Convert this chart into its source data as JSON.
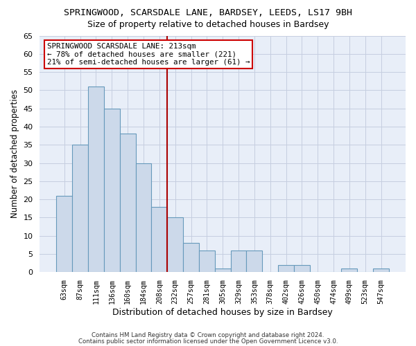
{
  "title1": "SPRINGWOOD, SCARSDALE LANE, BARDSEY, LEEDS, LS17 9BH",
  "title2": "Size of property relative to detached houses in Bardsey",
  "xlabel": "Distribution of detached houses by size in Bardsey",
  "ylabel": "Number of detached properties",
  "bar_labels": [
    "63sqm",
    "87sqm",
    "111sqm",
    "136sqm",
    "160sqm",
    "184sqm",
    "208sqm",
    "232sqm",
    "257sqm",
    "281sqm",
    "305sqm",
    "329sqm",
    "353sqm",
    "378sqm",
    "402sqm",
    "426sqm",
    "450sqm",
    "474sqm",
    "499sqm",
    "523sqm",
    "547sqm"
  ],
  "bar_values": [
    21,
    35,
    51,
    45,
    38,
    30,
    18,
    15,
    8,
    6,
    1,
    6,
    6,
    0,
    2,
    2,
    0,
    0,
    1,
    0,
    1
  ],
  "bar_color": "#ccd9ea",
  "bar_edge_color": "#6699bb",
  "vline_x_index": 6,
  "vline_color": "#aa0000",
  "ylim": [
    0,
    65
  ],
  "yticks": [
    0,
    5,
    10,
    15,
    20,
    25,
    30,
    35,
    40,
    45,
    50,
    55,
    60,
    65
  ],
  "annotation_line1": "SPRINGWOOD SCARSDALE LANE: 213sqm",
  "annotation_line2": "← 78% of detached houses are smaller (221)",
  "annotation_line3": "21% of semi-detached houses are larger (61) →",
  "annotation_box_edge": "#cc0000",
  "footer1": "Contains HM Land Registry data © Crown copyright and database right 2024.",
  "footer2": "Contains public sector information licensed under the Open Government Licence v3.0.",
  "bg_color": "#e8eef8",
  "grid_color": "#c5cee0"
}
